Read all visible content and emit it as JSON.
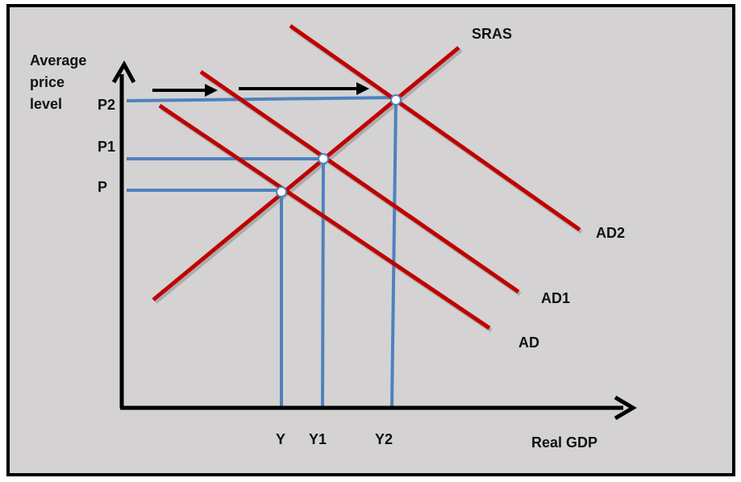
{
  "diagram": {
    "y_axis_label": [
      "Average",
      "price",
      "level"
    ],
    "x_axis_label": "Real GDP",
    "price_levels": [
      "P2",
      "P1",
      "P"
    ],
    "output_levels": [
      "Y",
      "Y1",
      "Y2"
    ],
    "curves": {
      "supply": "SRAS",
      "demand": [
        "AD",
        "AD1",
        "AD2"
      ]
    },
    "colors": {
      "curves": "#c00000",
      "guides": "#4f81bd",
      "background": "#d4d2d3",
      "axes": "#000000"
    }
  }
}
